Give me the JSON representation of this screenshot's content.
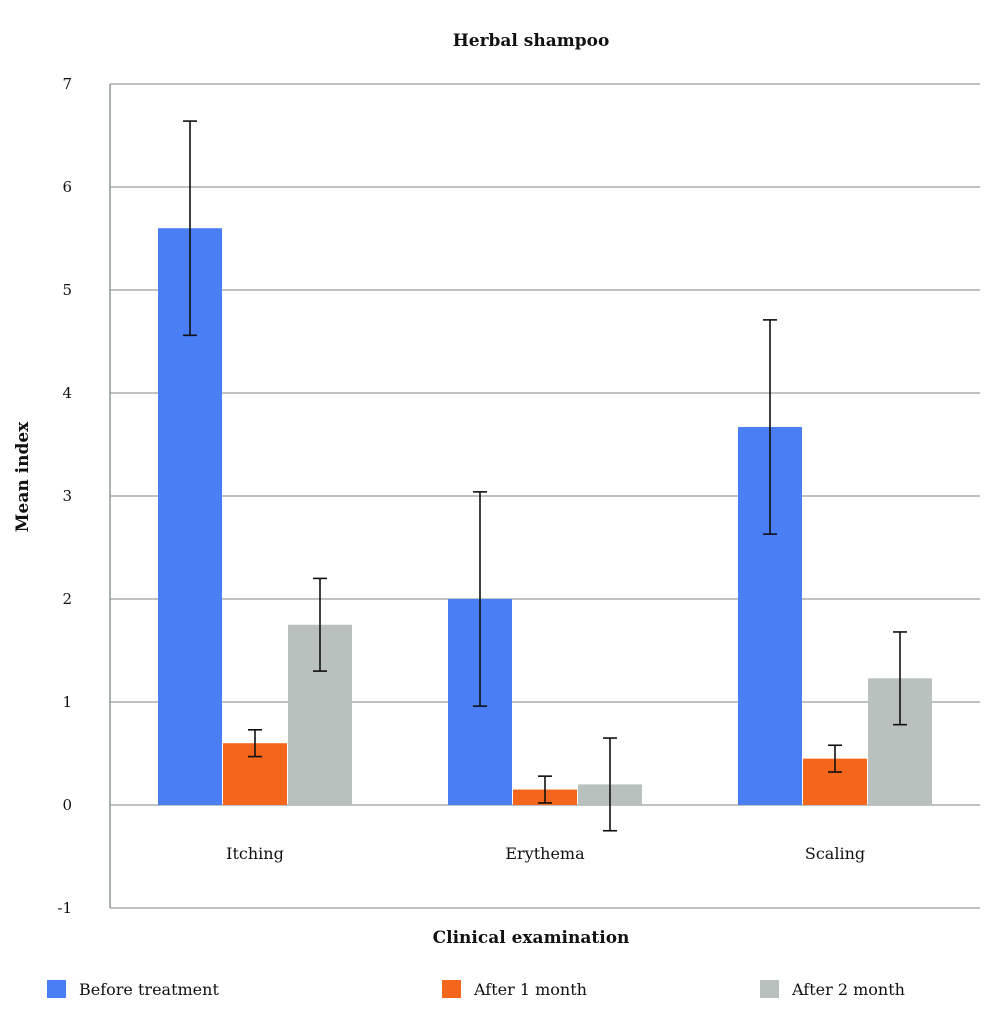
{
  "chart_data": {
    "type": "bar",
    "title": "Herbal shampoo",
    "xlabel": "Clinical examination",
    "ylabel": "Mean index",
    "ylim": [
      -1,
      7
    ],
    "yticks": [
      "-1",
      "0",
      "1",
      "2",
      "3",
      "4",
      "5",
      "6",
      "7"
    ],
    "categories": [
      "Itching",
      "Erythema",
      "Scaling"
    ],
    "grid": true,
    "legend_position": "bottom",
    "series": [
      {
        "name": "Before treatment",
        "color": "#4a7ef4",
        "values": [
          5.6,
          2.0,
          3.67
        ],
        "error": [
          1.04,
          1.04,
          1.04
        ]
      },
      {
        "name": "After 1 month",
        "color": "#f4661b",
        "values": [
          0.6,
          0.15,
          0.45
        ],
        "error": [
          0.13,
          0.13,
          0.13
        ]
      },
      {
        "name": "After 2 month",
        "color": "#b9c1be",
        "values": [
          1.75,
          0.2,
          1.23
        ],
        "error": [
          0.45,
          0.45,
          0.45
        ]
      }
    ]
  }
}
